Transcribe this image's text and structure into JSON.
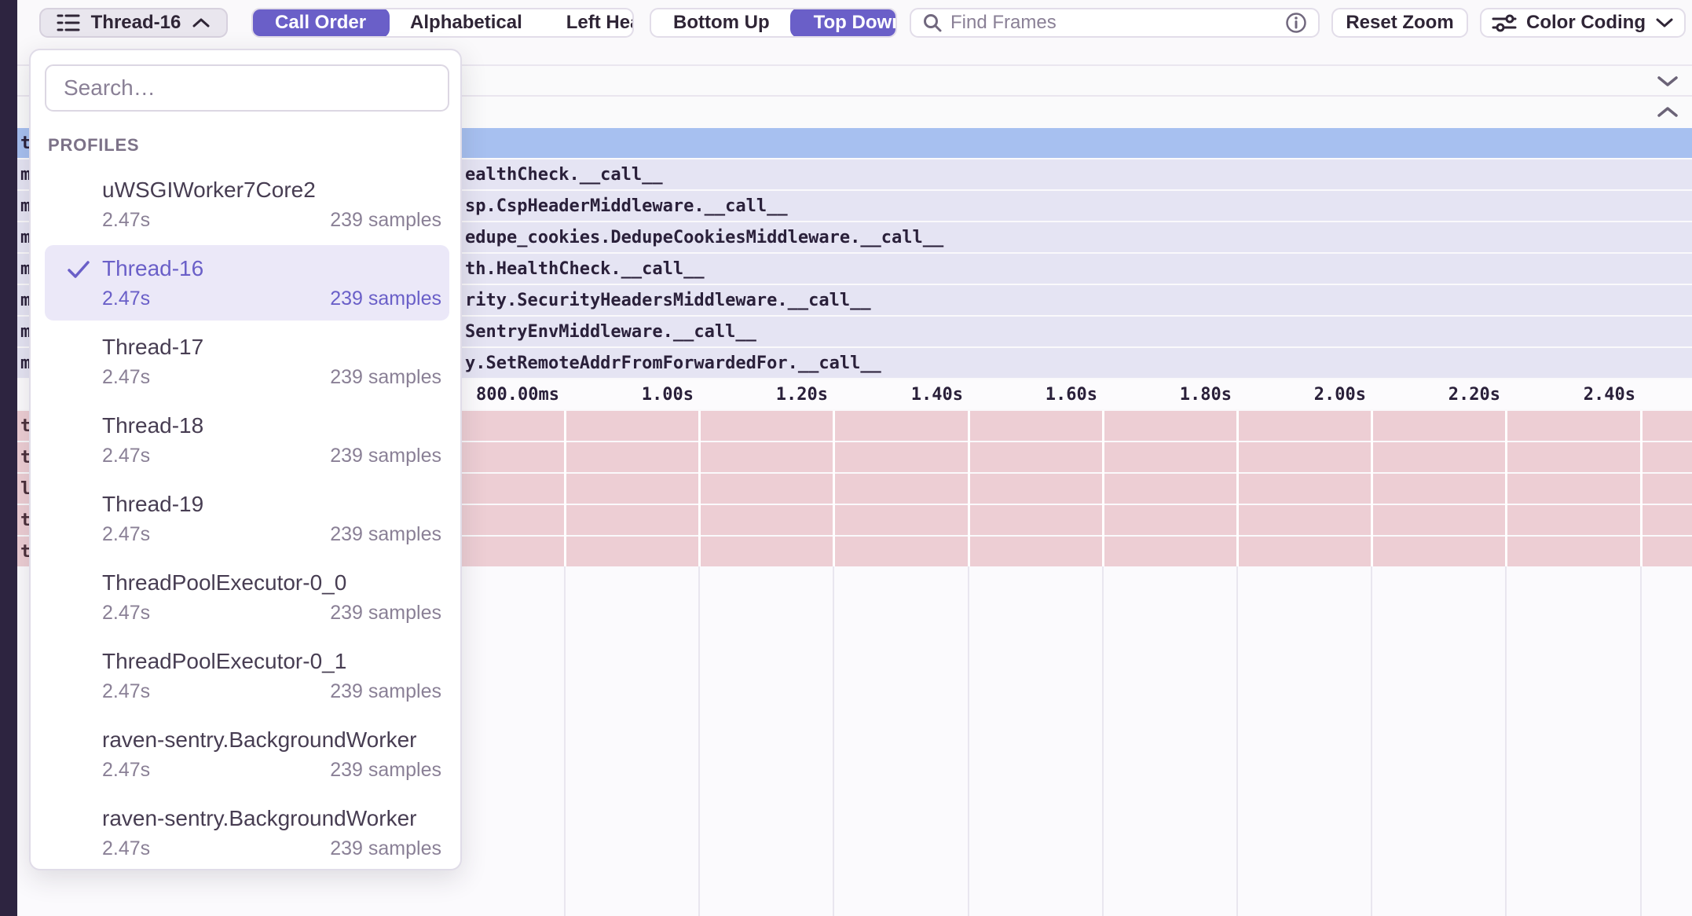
{
  "toolbar": {
    "thread_selector": {
      "label": "Thread-16"
    },
    "sort_segments": [
      {
        "label": "Call Order",
        "active": true
      },
      {
        "label": "Alphabetical",
        "active": false
      },
      {
        "label": "Left Heavy",
        "active": false
      }
    ],
    "direction_segments": [
      {
        "label": "Bottom Up",
        "active": false
      },
      {
        "label": "Top Down",
        "active": true
      }
    ],
    "find_frames_placeholder": "Find Frames",
    "reset_zoom_label": "Reset Zoom",
    "color_coding_label": "Color Coding",
    "icons": [
      "list-icon",
      "chevron-up-icon",
      "search-icon",
      "info-icon",
      "sliders-icon",
      "chevron-down-icon"
    ]
  },
  "dropdown": {
    "search_placeholder": "Search…",
    "section_label": "PROFILES",
    "items": [
      {
        "name": "uWSGIWorker7Core2",
        "duration": "2.47s",
        "samples": "239 samples",
        "selected": false
      },
      {
        "name": "Thread-16",
        "duration": "2.47s",
        "samples": "239 samples",
        "selected": true
      },
      {
        "name": "Thread-17",
        "duration": "2.47s",
        "samples": "239 samples",
        "selected": false
      },
      {
        "name": "Thread-18",
        "duration": "2.47s",
        "samples": "239 samples",
        "selected": false
      },
      {
        "name": "Thread-19",
        "duration": "2.47s",
        "samples": "239 samples",
        "selected": false
      },
      {
        "name": "ThreadPoolExecutor-0_0",
        "duration": "2.47s",
        "samples": "239 samples",
        "selected": false
      },
      {
        "name": "ThreadPoolExecutor-0_1",
        "duration": "2.47s",
        "samples": "239 samples",
        "selected": false
      },
      {
        "name": "raven-sentry.BackgroundWorker",
        "duration": "2.47s",
        "samples": "239 samples",
        "selected": false
      },
      {
        "name": "raven-sentry.BackgroundWorker",
        "duration": "2.47s",
        "samples": "239 samples",
        "selected": false
      }
    ]
  },
  "flamegraph": {
    "selected_row_fragment": "t",
    "frame_rows": [
      {
        "left_fragment": "m",
        "visible_text": "ealthCheck.__call__"
      },
      {
        "left_fragment": "m",
        "visible_text": "sp.CspHeaderMiddleware.__call__"
      },
      {
        "left_fragment": "m",
        "visible_text": "edupe_cookies.DedupeCookiesMiddleware.__call__"
      },
      {
        "left_fragment": "m",
        "visible_text": "th.HealthCheck.__call__"
      },
      {
        "left_fragment": "m",
        "visible_text": "rity.SecurityHeadersMiddleware.__call__"
      },
      {
        "left_fragment": "m",
        "visible_text": "SentryEnvMiddleware.__call__"
      },
      {
        "left_fragment": "m",
        "visible_text": "y.SetRemoteAddrFromForwardedFor.__call__"
      }
    ],
    "time_axis_ticks": [
      "800.00ms",
      "1.00s",
      "1.20s",
      "1.40s",
      "1.60s",
      "1.80s",
      "2.00s",
      "2.20s",
      "2.40s"
    ],
    "pink_row_fragments": [
      "t",
      "t",
      "l",
      "t",
      "t"
    ]
  },
  "colors": {
    "accent_purple": "#6a5fc8",
    "selected_frame_blue": "#a7c0f0",
    "frame_lavender": "#e5e4f3",
    "idle_frame_pink": "#edced4",
    "dark_rail": "#2d2440",
    "selected_item_bg": "#ebe8f8"
  }
}
